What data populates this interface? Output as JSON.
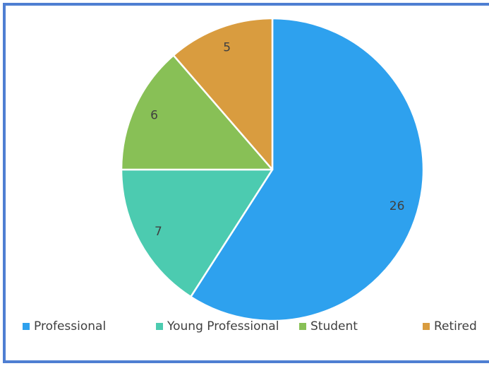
{
  "chart_data": {
    "type": "pie",
    "title": "",
    "categories": [
      "Professional",
      "Young Professional",
      "Student",
      "Retired"
    ],
    "values": [
      26,
      7,
      6,
      5
    ],
    "colors": [
      "#2ea1ee",
      "#4ccbb0",
      "#88c056",
      "#d99c3f"
    ],
    "legend_position": "bottom",
    "start_angle": "top",
    "direction": "clockwise"
  }
}
